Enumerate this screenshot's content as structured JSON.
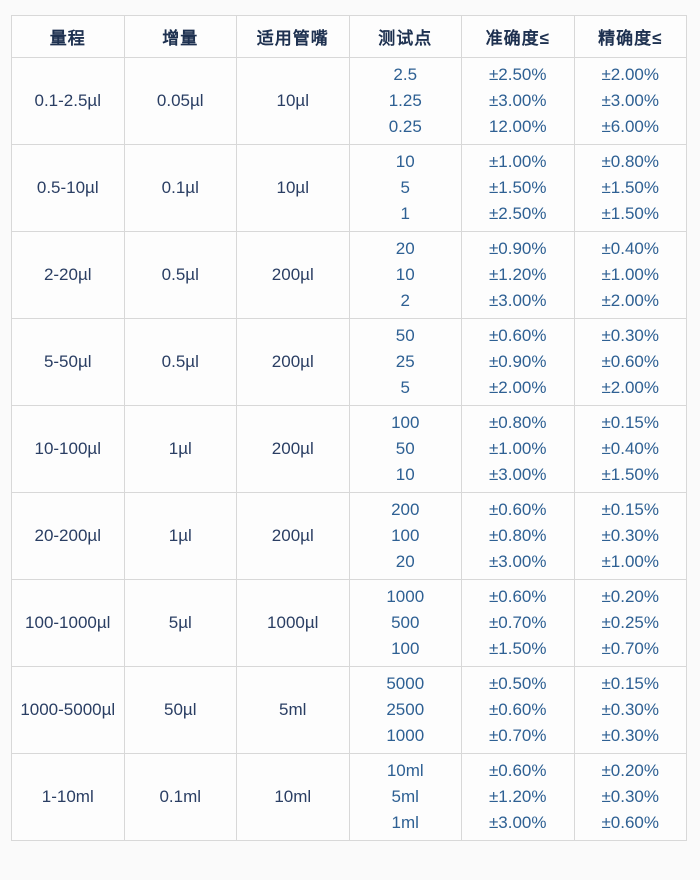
{
  "colors": {
    "page_background": "#fafafa",
    "cell_background": "#fdfdfd",
    "border": "#d8d8d8",
    "header_text": "#1e3150",
    "range_increment_tip_text": "#2a3e63",
    "testpoint_accuracy_precision_text": "#2e6093"
  },
  "table": {
    "headers": [
      "量程",
      "增量",
      "适用管嘴",
      "测试点",
      "准确度≤",
      "精确度≤"
    ],
    "rows": [
      {
        "range": "0.1-2.5µl",
        "increment": "0.05µl",
        "tip": "10µl",
        "points": [
          "2.5",
          "1.25",
          "0.25"
        ],
        "accuracy": [
          "±2.50%",
          "±3.00%",
          "12.00%"
        ],
        "precision": [
          "±2.00%",
          "±3.00%",
          "±6.00%"
        ]
      },
      {
        "range": "0.5-10µl",
        "increment": "0.1µl",
        "tip": "10µl",
        "points": [
          "10",
          "5",
          "1"
        ],
        "accuracy": [
          "±1.00%",
          "±1.50%",
          "±2.50%"
        ],
        "precision": [
          "±0.80%",
          "±1.50%",
          "±1.50%"
        ]
      },
      {
        "range": "2-20µl",
        "increment": "0.5µl",
        "tip": "200µl",
        "points": [
          "20",
          "10",
          "2"
        ],
        "accuracy": [
          "±0.90%",
          "±1.20%",
          "±3.00%"
        ],
        "precision": [
          "±0.40%",
          "±1.00%",
          "±2.00%"
        ]
      },
      {
        "range": "5-50µl",
        "increment": "0.5µl",
        "tip": "200µl",
        "points": [
          "50",
          "25",
          "5"
        ],
        "accuracy": [
          "±0.60%",
          "±0.90%",
          "±2.00%"
        ],
        "precision": [
          "±0.30%",
          "±0.60%",
          "±2.00%"
        ]
      },
      {
        "range": "10-100µl",
        "increment": "1µl",
        "tip": "200µl",
        "points": [
          "100",
          "50",
          "10"
        ],
        "accuracy": [
          "±0.80%",
          "±1.00%",
          "±3.00%"
        ],
        "precision": [
          "±0.15%",
          "±0.40%",
          "±1.50%"
        ]
      },
      {
        "range": "20-200µl",
        "increment": "1µl",
        "tip": "200µl",
        "points": [
          "200",
          "100",
          "20"
        ],
        "accuracy": [
          "±0.60%",
          "±0.80%",
          "±3.00%"
        ],
        "precision": [
          "±0.15%",
          "±0.30%",
          "±1.00%"
        ]
      },
      {
        "range": "100-1000µl",
        "increment": "5µl",
        "tip": "1000µl",
        "points": [
          "1000",
          "500",
          "100"
        ],
        "accuracy": [
          "±0.60%",
          "±0.70%",
          "±1.50%"
        ],
        "precision": [
          "±0.20%",
          "±0.25%",
          "±0.70%"
        ]
      },
      {
        "range": "1000-5000µl",
        "increment": "50µl",
        "tip": "5ml",
        "points": [
          "5000",
          "2500",
          "1000"
        ],
        "accuracy": [
          "±0.50%",
          "±0.60%",
          "±0.70%"
        ],
        "precision": [
          "±0.15%",
          "±0.30%",
          "±0.30%"
        ]
      },
      {
        "range": "1-10ml",
        "increment": "0.1ml",
        "tip": "10ml",
        "points": [
          "10ml",
          "5ml",
          "1ml"
        ],
        "accuracy": [
          "±0.60%",
          "±1.20%",
          "±3.00%"
        ],
        "precision": [
          "±0.20%",
          "±0.30%",
          "±0.60%"
        ]
      }
    ]
  }
}
